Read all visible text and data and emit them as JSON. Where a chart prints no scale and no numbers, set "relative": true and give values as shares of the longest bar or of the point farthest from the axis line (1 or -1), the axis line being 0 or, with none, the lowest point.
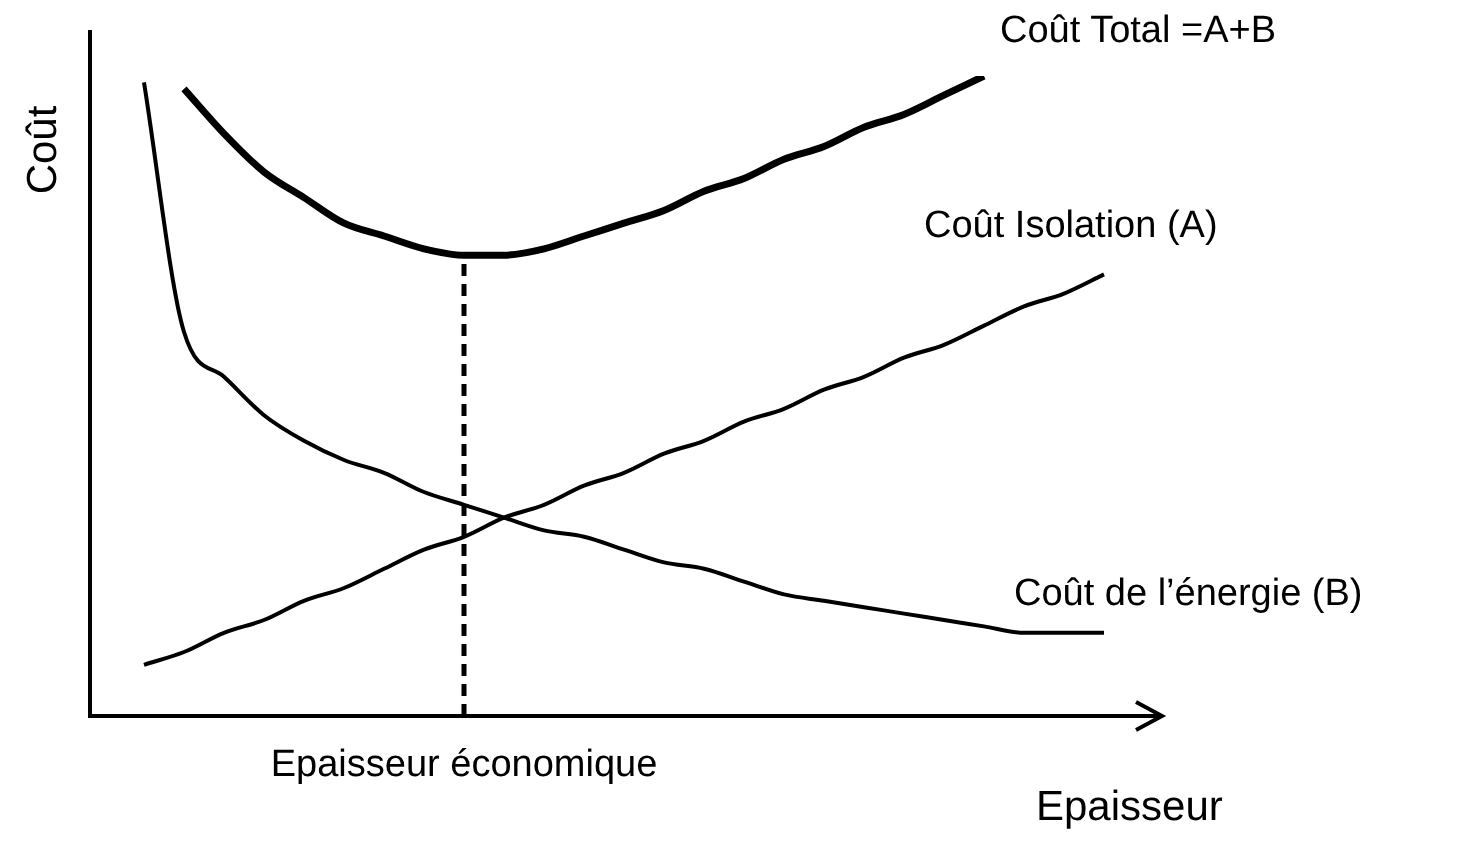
{
  "chart_data": {
    "type": "line",
    "relative": true,
    "xlabel": "Epaisseur",
    "ylabel": "Coût",
    "categories": [
      null,
      null,
      null,
      null,
      null,
      null,
      null,
      null,
      null,
      null,
      null,
      null,
      null,
      null,
      null,
      null,
      null,
      null,
      null,
      null,
      null,
      null,
      null,
      null,
      null
    ],
    "series": [
      {
        "name": "Coût Total =A+B",
        "color": "#000000",
        "values": [
          null,
          0.98,
          0.91,
          0.85,
          0.81,
          0.77,
          0.75,
          0.73,
          0.72,
          0.72,
          0.73,
          0.75,
          0.77,
          0.79,
          0.82,
          0.84,
          0.87,
          0.89,
          0.92,
          0.94,
          0.97,
          1.0,
          null,
          null,
          null
        ]
      },
      {
        "name": "Coût Isolation (A)",
        "color": "#000000",
        "values": [
          0.08,
          0.1,
          0.13,
          0.15,
          0.18,
          0.2,
          0.23,
          0.26,
          0.28,
          0.31,
          0.33,
          0.36,
          0.38,
          0.41,
          0.43,
          0.46,
          0.48,
          0.51,
          0.53,
          0.56,
          0.58,
          0.61,
          0.64,
          0.66,
          0.69
        ]
      },
      {
        "name": "Coût de l’énergie (B)",
        "color": "#000000",
        "values": [
          0.99,
          0.6,
          0.53,
          0.47,
          0.43,
          0.4,
          0.38,
          0.35,
          0.33,
          0.31,
          0.29,
          0.28,
          0.26,
          0.24,
          0.23,
          0.21,
          0.19,
          0.18,
          0.17,
          0.16,
          0.15,
          0.14,
          0.13,
          0.13,
          0.13
        ]
      }
    ],
    "annotations": [
      "Epaisseur économique"
    ],
    "legend": false,
    "tick_labels": false,
    "marker": "none",
    "line_style": "solid"
  }
}
